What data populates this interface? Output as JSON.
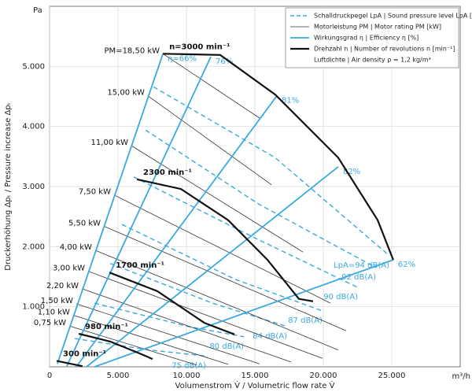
{
  "chart_data": {
    "type": "line",
    "x_label": "Volumenstrom V̇ / Volumetric flow rate V̇",
    "y_label": "Druckerhöhung Δpₜ / Pressure increase Δpₜ",
    "x_unit": "m³/h",
    "y_unit": "Pa",
    "xlim": [
      0,
      30000
    ],
    "ylim": [
      0,
      6000
    ],
    "xticks": [
      0,
      {
        "value": 5000,
        "label": "5.000"
      },
      {
        "value": 10000,
        "label": "10.000"
      },
      {
        "value": 15000,
        "label": "15.000"
      },
      {
        "value": 20000,
        "label": "20.000"
      },
      {
        "value": 25000,
        "label": "25.000"
      }
    ],
    "yticks": [
      {
        "value": 1000,
        "label": "1.000"
      },
      {
        "value": 2000,
        "label": "2.000"
      },
      {
        "value": 3000,
        "label": "3.000"
      },
      {
        "value": 4000,
        "label": "4.000"
      },
      {
        "value": 5000,
        "label": "5.000"
      }
    ],
    "grid": true,
    "legend_position": "top-right",
    "air_density": "Luftdichte | Air density ρ = 1,2 kg/m³",
    "groups": [
      {
        "name": "Schalldruckpegel LpA | Sound pressure level LpA [dB(A)]",
        "color": "#3aa9df",
        "width": 1.4,
        "dash": true,
        "lines": [
          {
            "label": "LpA=94 dB(A)",
            "x": [
              7590,
              16490,
              24830
            ],
            "y": [
              4660,
              3480,
              1850
            ]
          },
          {
            "label": "92 dB(A)",
            "x": [
              7010,
              15340,
              23850
            ],
            "y": [
              3940,
              2700,
              1650
            ]
          },
          {
            "label": "90 dB(A)",
            "x": [
              6150,
              14770,
              22530
            ],
            "y": [
              3160,
              2170,
              1320
            ]
          },
          {
            "label": "87 dB(A)",
            "x": [
              5290,
              13620,
              19940
            ],
            "y": [
              2370,
              1450,
              930
            ]
          },
          {
            "label": "84 dB(A)",
            "x": [
              4430,
              11900,
              17360
            ],
            "y": [
              1720,
              1060,
              670
            ]
          },
          {
            "label": "80 dB(A)",
            "x": [
              3280,
              10170,
              14200
            ],
            "y": [
              1060,
              670,
              500
            ]
          },
          {
            "label": "75 dB(A)",
            "x": [
              1840,
              7300,
              11440
            ],
            "y": [
              470,
              280,
              180
            ]
          }
        ]
      },
      {
        "name": "Motorleistung PM | Motor rating PM [kW]",
        "color": "#333333",
        "width": 0.8,
        "dash": false,
        "lines": [
          {
            "label": "PM=18,50 kW",
            "x": [
              8280,
              15340
            ],
            "y": [
              5210,
              4140
            ]
          },
          {
            "label": "15,00 kW",
            "x": [
              7180,
              16210
            ],
            "y": [
              4510,
              3030
            ]
          },
          {
            "label": "11,00 kW",
            "x": [
              5980,
              18510
            ],
            "y": [
              3680,
              1910
            ]
          },
          {
            "label": "7,50 kW",
            "x": [
              4710,
              20520
            ],
            "y": [
              2860,
              1060
            ]
          },
          {
            "label": "5,50 kW",
            "x": [
              3970,
              21670
            ],
            "y": [
              2340,
              600
            ]
          },
          {
            "label": "4,00 kW",
            "x": [
              3330,
              21090
            ],
            "y": [
              1940,
              280
            ]
          },
          {
            "label": "3,00 kW",
            "x": [
              2820,
              19940
            ],
            "y": [
              1590,
              140
            ]
          },
          {
            "label": "2,20 kW",
            "x": [
              2360,
              17640
            ],
            "y": [
              1300,
              80
            ]
          },
          {
            "label": "1,50 kW",
            "x": [
              1950,
              15340
            ],
            "y": [
              1050,
              50
            ]
          },
          {
            "label": "1,10 kW",
            "x": [
              1720,
              13050
            ],
            "y": [
              860,
              40
            ]
          },
          {
            "label": "0,75 kW",
            "x": [
              1440,
              10750
            ],
            "y": [
              680,
              30
            ]
          }
        ]
      },
      {
        "name": "Wirkungsgrad η | Efficiency η [%]",
        "color": "#3aa9df",
        "width": 1.8,
        "dash": false,
        "lines": [
          {
            "label": "η=66%",
            "x": [
              570,
              8280
            ],
            "y": [
              50,
              5210
            ]
          },
          {
            "label": "76%",
            "x": [
              1260,
              11780
            ],
            "y": [
              10,
              5160
            ]
          },
          {
            "label": "81%",
            "x": [
              1950,
              16610
            ],
            "y": [
              0,
              4510
            ]
          },
          {
            "label": "82%",
            "x": [
              2700,
              21090
            ],
            "y": [
              0,
              3330
            ]
          },
          {
            "label": "62%",
            "x": [
              3280,
              25110
            ],
            "y": [
              0,
              1780
            ]
          }
        ]
      },
      {
        "name": "Drehzahl n | Number of revolutions n [min⁻¹]",
        "color": "#111111",
        "width": 2.2,
        "dash": false,
        "lines": [
          {
            "label": "n=3000 min⁻¹",
            "x": [
              8280,
              12470,
              16490,
              21090,
              23970,
              25110
            ],
            "y": [
              5210,
              5190,
              4530,
              3480,
              2440,
              1780
            ]
          },
          {
            "label": "2300 min⁻¹",
            "x": [
              6380,
              9600,
              13050,
              15920,
              18220,
              19250
            ],
            "y": [
              3120,
              2960,
              2440,
              1780,
              1130,
              1090
            ]
          },
          {
            "label": "1700 min⁻¹",
            "x": [
              4370,
              7870,
              11320,
              13510
            ],
            "y": [
              1570,
              1260,
              730,
              540
            ]
          },
          {
            "label": "980 min⁻¹",
            "x": [
              2130,
              4430,
              6720,
              7530
            ],
            "y": [
              550,
              420,
              210,
              130
            ]
          },
          {
            "label": "300 min⁻¹",
            "x": [
              520,
              1550,
              2410
            ],
            "y": [
              100,
              50,
              10
            ]
          }
        ]
      }
    ]
  }
}
